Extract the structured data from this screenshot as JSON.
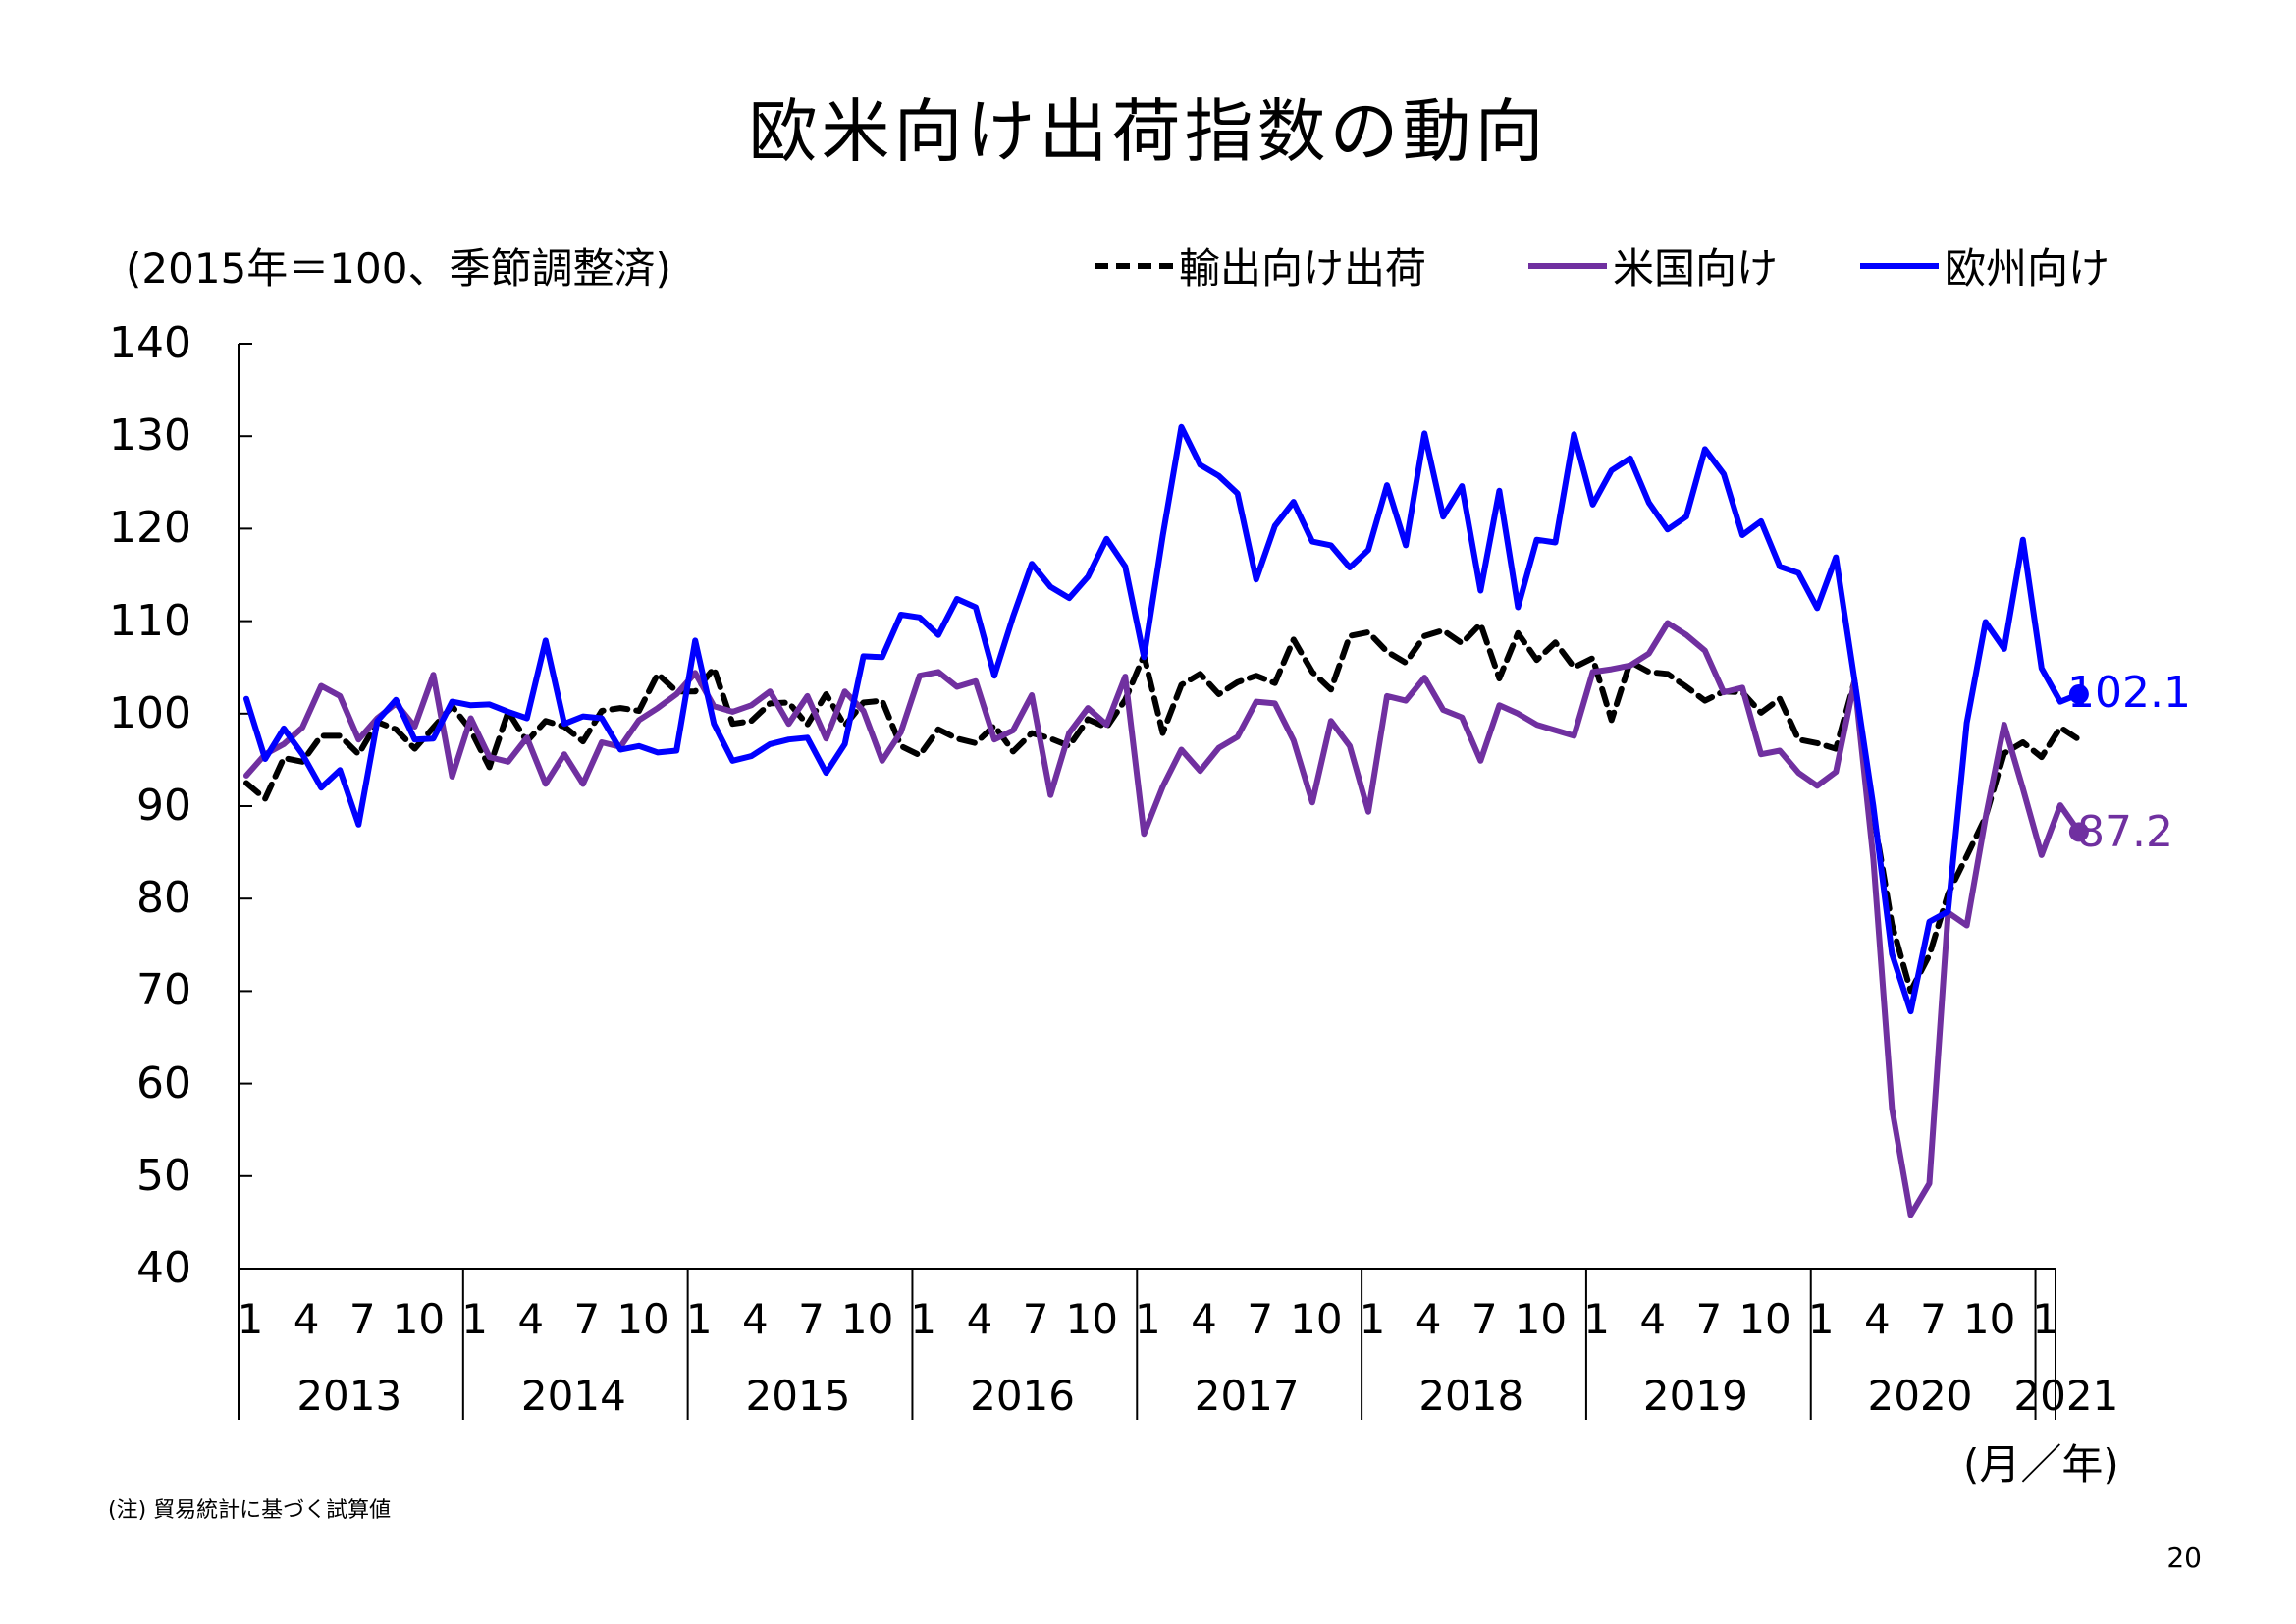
{
  "title": "欧米向け出荷指数の動向",
  "unit_note": "(2015年＝100、季節調整済)",
  "x_unit": "(月／年)",
  "footnote": "(注) 貿易統計に基づく試算値",
  "page_number": "20",
  "legend": [
    {
      "label": "輸出向け出荷",
      "color": "#000000",
      "style": "dashed"
    },
    {
      "label": "米国向け",
      "color": "#7030A0",
      "style": "solid"
    },
    {
      "label": "欧州向け",
      "color": "#0000FF",
      "style": "solid"
    }
  ],
  "end_labels": {
    "europe": "102.1",
    "us": "87.2"
  },
  "chart_data": {
    "type": "line",
    "title": "欧米向け出荷指数の動向",
    "ylabel": "(2015年＝100、季節調整済)",
    "xlabel": "(月／年)",
    "ylim": [
      40,
      140
    ],
    "yticks": [
      "140",
      "130",
      "120",
      "110",
      "100",
      "90",
      "80",
      "70",
      "60",
      "50",
      "40"
    ],
    "month_ticks": [
      "1",
      "4",
      "7",
      "10"
    ],
    "years": [
      "2013",
      "2014",
      "2015",
      "2016",
      "2017",
      "2018",
      "2019",
      "2020",
      "2021"
    ],
    "x_start": "2013-01",
    "x_end": "2021-02",
    "grid": false,
    "legend_position": "top",
    "series": [
      {
        "name": "輸出向け出荷",
        "color": "#000000",
        "dash": true,
        "values": [
          92.5,
          90.8,
          95.2,
          94.8,
          97.6,
          97.6,
          95.6,
          99.1,
          98.3,
          96.2,
          98.5,
          100.8,
          98.2,
          94.2,
          100.2,
          97.0,
          99.2,
          98.6,
          97.0,
          100.3,
          100.6,
          100.3,
          104.3,
          102.4,
          102.4,
          104.9,
          98.9,
          99.2,
          101.1,
          101.2,
          98.8,
          102.1,
          98.7,
          101.2,
          101.4,
          96.5,
          95.5,
          98.3,
          97.3,
          96.8,
          98.7,
          95.9,
          97.9,
          97.3,
          96.5,
          99.4,
          98.5,
          101.5,
          106.3,
          97.9,
          103.1,
          104.3,
          102.1,
          103.4,
          104.1,
          103.3,
          108.0,
          104.5,
          102.6,
          108.4,
          108.8,
          106.7,
          105.5,
          108.4,
          109.0,
          107.6,
          109.7,
          103.8,
          108.7,
          105.8,
          107.7,
          105.0,
          106.0,
          99.3,
          105.6,
          104.5,
          104.3,
          102.9,
          101.4,
          102.4,
          102.3,
          100.1,
          101.6,
          97.2,
          96.8,
          96.2,
          103.5,
          89.2,
          77.2,
          70.0,
          73.9,
          80.5,
          84.6,
          88.8,
          95.7,
          96.9,
          95.3,
          98.5,
          97.2
        ]
      },
      {
        "name": "米国向け",
        "color": "#7030A0",
        "dash": false,
        "values": [
          93.3,
          95.6,
          96.7,
          98.5,
          103.0,
          101.9,
          97.2,
          99.5,
          101.1,
          98.6,
          104.2,
          93.2,
          99.5,
          95.3,
          94.8,
          97.4,
          92.4,
          95.6,
          92.4,
          96.9,
          96.4,
          99.3,
          100.6,
          102.1,
          104.4,
          100.8,
          100.2,
          100.9,
          102.4,
          98.9,
          101.9,
          97.3,
          102.4,
          100.3,
          94.9,
          98.0,
          104.1,
          104.5,
          102.9,
          103.5,
          97.2,
          98.2,
          102.0,
          91.2,
          97.9,
          100.6,
          98.8,
          104.0,
          87.0,
          92.1,
          96.1,
          93.8,
          96.3,
          97.5,
          101.3,
          101.1,
          97.1,
          90.4,
          99.2,
          96.5,
          89.4,
          101.9,
          101.4,
          103.9,
          100.4,
          99.6,
          94.9,
          100.9,
          100.0,
          98.8,
          98.2,
          97.6,
          104.5,
          104.8,
          105.2,
          106.5,
          109.8,
          108.5,
          106.8,
          102.3,
          102.8,
          95.6,
          96.0,
          93.6,
          92.2,
          93.7,
          103.5,
          84.3,
          57.3,
          45.8,
          49.2,
          78.5,
          77.1,
          88.7,
          98.8,
          91.9,
          84.7,
          90.1,
          87.2
        ]
      },
      {
        "name": "欧州向け",
        "color": "#0000FF",
        "dash": false,
        "values": [
          101.6,
          95.1,
          98.4,
          95.6,
          92.0,
          93.9,
          88.0,
          99.2,
          101.5,
          97.2,
          97.3,
          101.3,
          100.9,
          101.0,
          100.2,
          99.5,
          107.9,
          98.9,
          99.7,
          99.5,
          96.1,
          96.5,
          95.8,
          96.0,
          107.9,
          98.9,
          94.9,
          95.4,
          96.7,
          97.2,
          97.4,
          93.6,
          96.7,
          106.2,
          106.1,
          110.7,
          110.4,
          108.5,
          112.4,
          111.5,
          104.1,
          110.5,
          116.2,
          113.7,
          112.5,
          114.8,
          118.9,
          115.9,
          106.1,
          119.2,
          131.0,
          126.9,
          125.7,
          123.8,
          114.5,
          120.3,
          122.9,
          118.6,
          118.2,
          115.8,
          117.7,
          124.7,
          118.2,
          130.3,
          121.3,
          124.6,
          113.3,
          124.1,
          111.5,
          118.8,
          118.5,
          130.2,
          122.6,
          126.3,
          127.6,
          122.8,
          119.9,
          121.3,
          128.6,
          125.9,
          119.3,
          120.8,
          115.9,
          115.2,
          111.4,
          116.9,
          103.6,
          90.0,
          74.0,
          67.8,
          77.5,
          78.6,
          99.0,
          109.9,
          107.0,
          118.8,
          104.9,
          101.3,
          102.1
        ]
      }
    ]
  }
}
